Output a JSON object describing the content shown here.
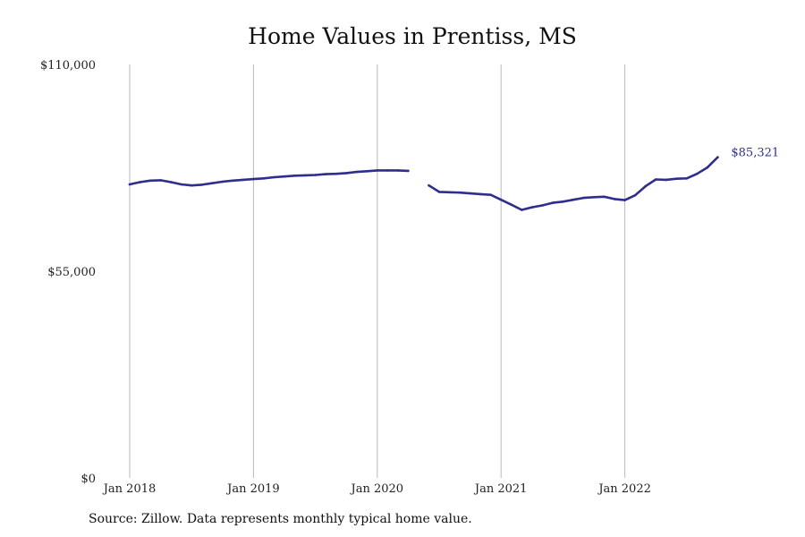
{
  "chart_data": {
    "type": "line",
    "title": "Home Values in Prentiss, MS",
    "source": "Source: Zillow. Data represents monthly typical home value.",
    "xlabel": "",
    "ylabel": "",
    "x_ticks": [
      {
        "label": "Jan 2018",
        "date": "2018-01"
      },
      {
        "label": "Jan 2019",
        "date": "2019-01"
      },
      {
        "label": "Jan 2020",
        "date": "2020-01"
      },
      {
        "label": "Jan 2021",
        "date": "2021-01"
      },
      {
        "label": "Jan 2022",
        "date": "2022-01"
      }
    ],
    "y_ticks": [
      {
        "label": "$0",
        "value": 0
      },
      {
        "label": "$55,000",
        "value": 55000
      },
      {
        "label": "$110,000",
        "value": 110000
      }
    ],
    "ylim": [
      0,
      110000
    ],
    "grid": "vertical",
    "line_color": "#2e2e8f",
    "end_label": "$85,321",
    "series": [
      {
        "segments": [
          [
            {
              "x": "2018-01",
              "y": 78100
            },
            {
              "x": "2018-02",
              "y": 78700
            },
            {
              "x": "2018-03",
              "y": 79100
            },
            {
              "x": "2018-04",
              "y": 79200
            },
            {
              "x": "2018-05",
              "y": 78700
            },
            {
              "x": "2018-06",
              "y": 78100
            },
            {
              "x": "2018-07",
              "y": 77800
            },
            {
              "x": "2018-08",
              "y": 78000
            },
            {
              "x": "2018-09",
              "y": 78400
            },
            {
              "x": "2018-10",
              "y": 78800
            },
            {
              "x": "2018-11",
              "y": 79100
            },
            {
              "x": "2018-12",
              "y": 79300
            },
            {
              "x": "2019-01",
              "y": 79500
            },
            {
              "x": "2019-02",
              "y": 79700
            },
            {
              "x": "2019-03",
              "y": 80000
            },
            {
              "x": "2019-04",
              "y": 80200
            },
            {
              "x": "2019-05",
              "y": 80400
            },
            {
              "x": "2019-06",
              "y": 80500
            },
            {
              "x": "2019-07",
              "y": 80600
            },
            {
              "x": "2019-08",
              "y": 80800
            },
            {
              "x": "2019-09",
              "y": 80900
            },
            {
              "x": "2019-10",
              "y": 81100
            },
            {
              "x": "2019-11",
              "y": 81400
            },
            {
              "x": "2019-12",
              "y": 81600
            },
            {
              "x": "2020-01",
              "y": 81800
            },
            {
              "x": "2020-02",
              "y": 81800
            },
            {
              "x": "2020-03",
              "y": 81800
            },
            {
              "x": "2020-04",
              "y": 81700
            }
          ],
          [
            {
              "x": "2020-06",
              "y": 77800
            },
            {
              "x": "2020-07",
              "y": 76100
            },
            {
              "x": "2020-08",
              "y": 76000
            },
            {
              "x": "2020-09",
              "y": 75900
            },
            {
              "x": "2020-10",
              "y": 75700
            },
            {
              "x": "2020-11",
              "y": 75500
            },
            {
              "x": "2020-12",
              "y": 75300
            },
            {
              "x": "2021-01",
              "y": 74000
            },
            {
              "x": "2021-02",
              "y": 72700
            },
            {
              "x": "2021-03",
              "y": 71300
            },
            {
              "x": "2021-04",
              "y": 72000
            },
            {
              "x": "2021-05",
              "y": 72500
            },
            {
              "x": "2021-06",
              "y": 73200
            },
            {
              "x": "2021-07",
              "y": 73500
            },
            {
              "x": "2021-08",
              "y": 74000
            },
            {
              "x": "2021-09",
              "y": 74500
            },
            {
              "x": "2021-10",
              "y": 74700
            },
            {
              "x": "2021-11",
              "y": 74800
            },
            {
              "x": "2021-12",
              "y": 74200
            },
            {
              "x": "2022-01",
              "y": 73900
            },
            {
              "x": "2022-02",
              "y": 75200
            },
            {
              "x": "2022-03",
              "y": 77600
            },
            {
              "x": "2022-04",
              "y": 79400
            },
            {
              "x": "2022-05",
              "y": 79300
            },
            {
              "x": "2022-06",
              "y": 79600
            },
            {
              "x": "2022-07",
              "y": 79700
            },
            {
              "x": "2022-08",
              "y": 80900
            },
            {
              "x": "2022-09",
              "y": 82600
            },
            {
              "x": "2022-10",
              "y": 85321
            }
          ]
        ]
      }
    ]
  }
}
